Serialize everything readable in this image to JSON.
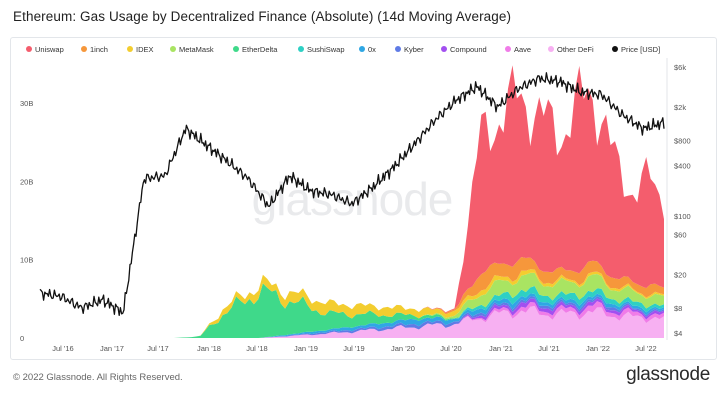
{
  "title": "Ethereum: Gas Usage by Decentralized Finance (Absolute) (14d Moving Average)",
  "footer": {
    "copyright": "© 2022 Glassnode. All Rights Reserved.",
    "brand": "glassnode"
  },
  "watermark": "glassnode",
  "chart_data": {
    "type": "area",
    "title": "Ethereum: Gas Usage by Decentralized Finance (Absolute) (14d Moving Average)",
    "x_ticks": [
      "Jul '16",
      "Jan '17",
      "Jul '17",
      "Jan '18",
      "Jul '18",
      "Jan '19",
      "Jul '19",
      "Jan '20",
      "Jul '20",
      "Jan '21",
      "Jul '21",
      "Jan '22",
      "Jul '22"
    ],
    "y_left_ticks": [
      "0",
      "10B",
      "20B",
      "30B"
    ],
    "y_left_range": [
      0,
      35000000000
    ],
    "y_right_ticks": [
      "$4",
      "$8",
      "$20",
      "$60",
      "$100",
      "$400",
      "$800",
      "$2k",
      "$6k"
    ],
    "y_right_scale": "log",
    "legend_position": "top",
    "grid": false,
    "series": [
      {
        "name": "Uniswap",
        "color": "#f45d6d",
        "values": [
          0,
          0,
          0,
          0,
          0,
          0,
          0,
          0,
          0.1,
          17,
          21,
          19,
          18,
          23,
          16,
          11,
          14,
          12
        ]
      },
      {
        "name": "1inch",
        "color": "#f6973b",
        "values": [
          0,
          0,
          0,
          0,
          0,
          0,
          0,
          0,
          0.2,
          2.0,
          1.7,
          1.4,
          1.2,
          1.5,
          1.2,
          1.0,
          1.1,
          0.9
        ]
      },
      {
        "name": "IDEX",
        "color": "#f3cd2f",
        "values": [
          0,
          0,
          0,
          0,
          0.6,
          1.0,
          1.3,
          0.8,
          0.5,
          0.6,
          0.5,
          0.4,
          0.3,
          0.3,
          0.3,
          0.2,
          0.2,
          0.2
        ]
      },
      {
        "name": "MetaMask",
        "color": "#a9e462",
        "values": [
          0,
          0,
          0,
          0,
          0,
          0,
          0,
          0,
          0.3,
          1.5,
          1.8,
          1.6,
          1.5,
          1.8,
          1.5,
          1.2,
          1.3,
          1.0
        ]
      },
      {
        "name": "EtherDelta",
        "color": "#3fd98a",
        "values": [
          0,
          0,
          0,
          0.2,
          2.8,
          6.0,
          2.0,
          0.4,
          0.1,
          0,
          0,
          0,
          0,
          0,
          0,
          0,
          0,
          0
        ]
      },
      {
        "name": "SushiSwap",
        "color": "#2ed0c4",
        "values": [
          0,
          0,
          0,
          0,
          0,
          0,
          0,
          0,
          0,
          0.4,
          0.9,
          0.8,
          0.7,
          0.8,
          0.6,
          0.5,
          0.5,
          0.4
        ]
      },
      {
        "name": "0x",
        "color": "#2fa7e4",
        "values": [
          0,
          0,
          0,
          0,
          0,
          0,
          0.3,
          0.6,
          0.4,
          0.5,
          0.5,
          0.4,
          0.4,
          0.4,
          0.4,
          0.3,
          0.3,
          0.3
        ]
      },
      {
        "name": "Kyber",
        "color": "#5f7be6",
        "values": [
          0,
          0,
          0,
          0,
          0,
          0,
          0.2,
          0.4,
          0.3,
          0.3,
          0.3,
          0.3,
          0.3,
          0.3,
          0.3,
          0.2,
          0.2,
          0.2
        ]
      },
      {
        "name": "Compound",
        "color": "#a24ff0",
        "values": [
          0,
          0,
          0,
          0,
          0,
          0,
          0,
          0,
          0,
          0.3,
          0.5,
          0.5,
          0.4,
          0.4,
          0.4,
          0.3,
          0.3,
          0.3
        ]
      },
      {
        "name": "Aave",
        "color": "#f07ce8",
        "values": [
          0,
          0,
          0,
          0,
          0,
          0,
          0,
          0,
          0,
          0.2,
          0.5,
          0.5,
          0.5,
          0.7,
          0.6,
          0.5,
          0.5,
          0.4
        ]
      },
      {
        "name": "Other DeFi",
        "color": "#f7b0f2",
        "values": [
          0,
          0,
          0,
          0,
          0,
          0,
          0.6,
          1.5,
          1.8,
          2.6,
          3.5,
          3.2,
          3.0,
          3.4,
          3.0,
          2.6,
          2.7,
          2.3
        ]
      }
    ],
    "price_series": {
      "name": "Price [USD]",
      "color": "#111111",
      "axis": "right",
      "values": [
        12,
        11,
        8,
        10,
        7,
        280,
        300,
        1100,
        700,
        450,
        280,
        130,
        300,
        200,
        180,
        140,
        220,
        380,
        720,
        1400,
        2400,
        3500,
        2000,
        3300,
        4400,
        4000,
        3000,
        2800,
        1600,
        1100,
        1300
      ]
    }
  },
  "legend_labels": {
    "uniswap": "Uniswap",
    "oneinch": "1inch",
    "idex": "IDEX",
    "metamask": "MetaMask",
    "etherdelta": "EtherDelta",
    "sushiswap": "SushiSwap",
    "zerox": "0x",
    "kyber": "Kyber",
    "compound": "Compound",
    "aave": "Aave",
    "other": "Other DeFi",
    "price": "Price [USD]"
  },
  "colors": {
    "uniswap": "#f45d6d",
    "oneinch": "#f6973b",
    "idex": "#f3cd2f",
    "metamask": "#a9e462",
    "etherdelta": "#3fd98a",
    "sushiswap": "#2ed0c4",
    "zerox": "#2fa7e4",
    "kyber": "#5f7be6",
    "compound": "#a24ff0",
    "aave": "#f07ce8",
    "other": "#f7b0f2",
    "price": "#111111"
  }
}
